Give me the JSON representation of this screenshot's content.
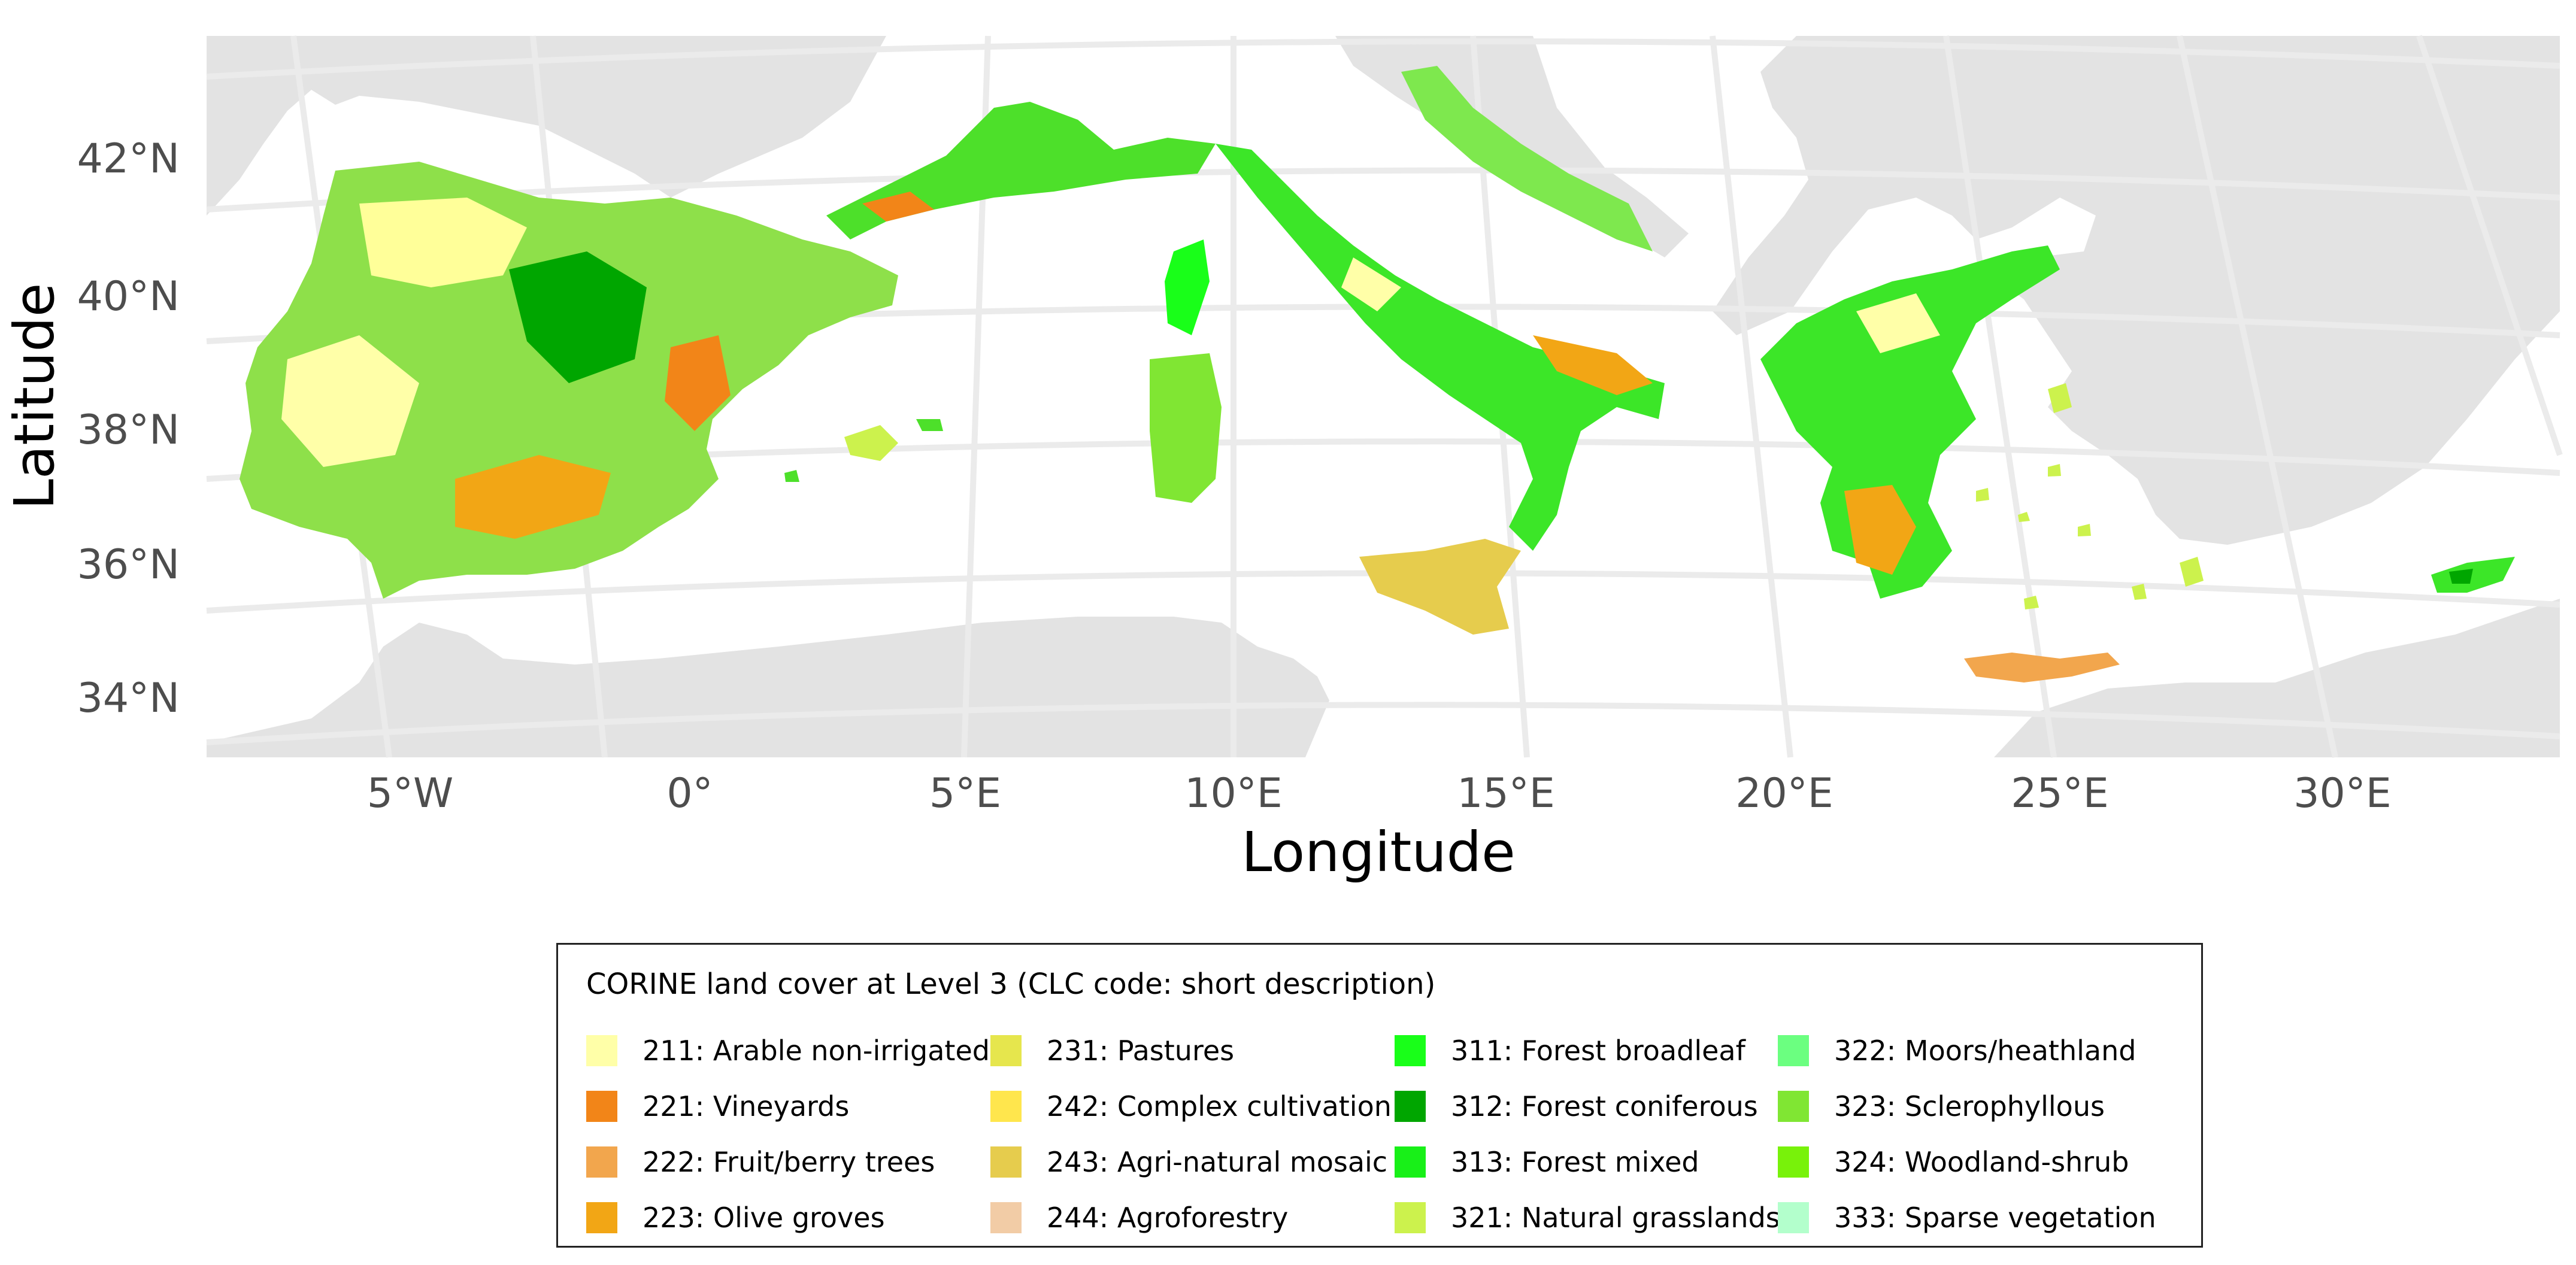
{
  "map": {
    "xlabel": "Longitude",
    "ylabel": "Latitude",
    "lat_ticks": [
      "42°N",
      "40°N",
      "38°N",
      "36°N",
      "34°N"
    ],
    "lon_ticks": [
      "5°W",
      "0°",
      "5°E",
      "10°E",
      "15°E",
      "20°E",
      "25°E",
      "30°E"
    ],
    "background_land_color": "#e3e3e3",
    "sea_color": "#ffffff",
    "graticule_color": "#ebebeb"
  },
  "legend": {
    "title": "CORINE land cover at Level 3 (CLC code: short description)",
    "items": [
      {
        "label": "211: Arable non-irrigated",
        "color": "#ffffa8"
      },
      {
        "label": "221: Vineyards",
        "color": "#f28518"
      },
      {
        "label": "222: Fruit/berry trees",
        "color": "#f2a64d"
      },
      {
        "label": "223: Olive groves",
        "color": "#f2a615"
      },
      {
        "label": "231: Pastures",
        "color": "#e6e64d"
      },
      {
        "label": "242: Complex cultivation",
        "color": "#ffe64d"
      },
      {
        "label": "243: Agri-natural mosaic",
        "color": "#e6cc4d"
      },
      {
        "label": "244: Agroforestry",
        "color": "#f2cca6"
      },
      {
        "label": "311: Forest broadleaf",
        "color": "#19ff19"
      },
      {
        "label": "312: Forest coniferous",
        "color": "#00a600"
      },
      {
        "label": "313: Forest mixed",
        "color": "#18f018"
      },
      {
        "label": "321: Natural grasslands",
        "color": "#ccf24d"
      },
      {
        "label": "322: Moors/heathland",
        "color": "#6bff80"
      },
      {
        "label": "323: Sclerophyllous",
        "color": "#80e633"
      },
      {
        "label": "324: Woodland-shrub",
        "color": "#78f20a"
      },
      {
        "label": "333: Sparse vegetation",
        "color": "#b3ffcc"
      }
    ]
  }
}
